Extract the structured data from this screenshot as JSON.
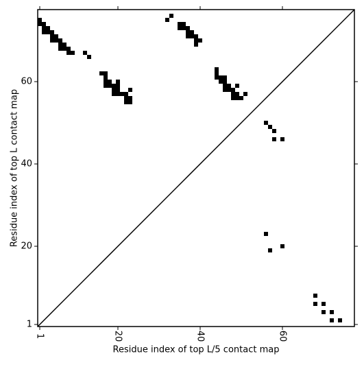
{
  "chart_data": {
    "type": "scatter",
    "xlabel": "Residue index of top L/5 contact map",
    "ylabel": "Residue index of top L contact map",
    "xlim": [
      0.5,
      77.5
    ],
    "ylim": [
      0.5,
      77.5
    ],
    "xticks": [
      1,
      20,
      40,
      60
    ],
    "yticks": [
      1,
      20,
      40,
      60
    ],
    "color": "#000000",
    "x": [
      1,
      1,
      2,
      2,
      3,
      2,
      3,
      4,
      4,
      5,
      4,
      5,
      6,
      6,
      7,
      6,
      7,
      8,
      8,
      9,
      12,
      13,
      16,
      17,
      17,
      17,
      18,
      17,
      18,
      19,
      20,
      20,
      19,
      20,
      19,
      20,
      21,
      22,
      22,
      23,
      22,
      23,
      23,
      32,
      33,
      35,
      36,
      35,
      36,
      37,
      37,
      38,
      37,
      38,
      39,
      39,
      40,
      39,
      44,
      44,
      44,
      45,
      46,
      45,
      46,
      46,
      47,
      46,
      47,
      48,
      48,
      49,
      48,
      49,
      50,
      49,
      51,
      56,
      57,
      58,
      58,
      60,
      56,
      57,
      60,
      68,
      68,
      70,
      70,
      72,
      72,
      74
    ],
    "y": [
      75,
      74,
      74,
      73,
      73,
      72,
      72,
      72,
      71,
      71,
      70,
      70,
      70,
      69,
      69,
      68,
      68,
      68,
      67,
      67,
      67,
      66,
      62,
      62,
      61,
      60,
      60,
      59,
      59,
      59,
      60,
      59,
      58,
      58,
      57,
      57,
      57,
      57,
      56,
      56,
      55,
      55,
      58,
      75,
      76,
      74,
      74,
      73,
      73,
      73,
      72,
      72,
      71,
      71,
      71,
      70,
      70,
      69,
      63,
      62,
      61,
      61,
      61,
      60,
      60,
      59,
      59,
      58,
      58,
      58,
      57,
      57,
      56,
      56,
      56,
      59,
      57,
      50,
      49,
      48,
      46,
      46,
      23,
      19,
      20,
      8,
      6,
      6,
      4,
      4,
      2,
      2
    ]
  }
}
